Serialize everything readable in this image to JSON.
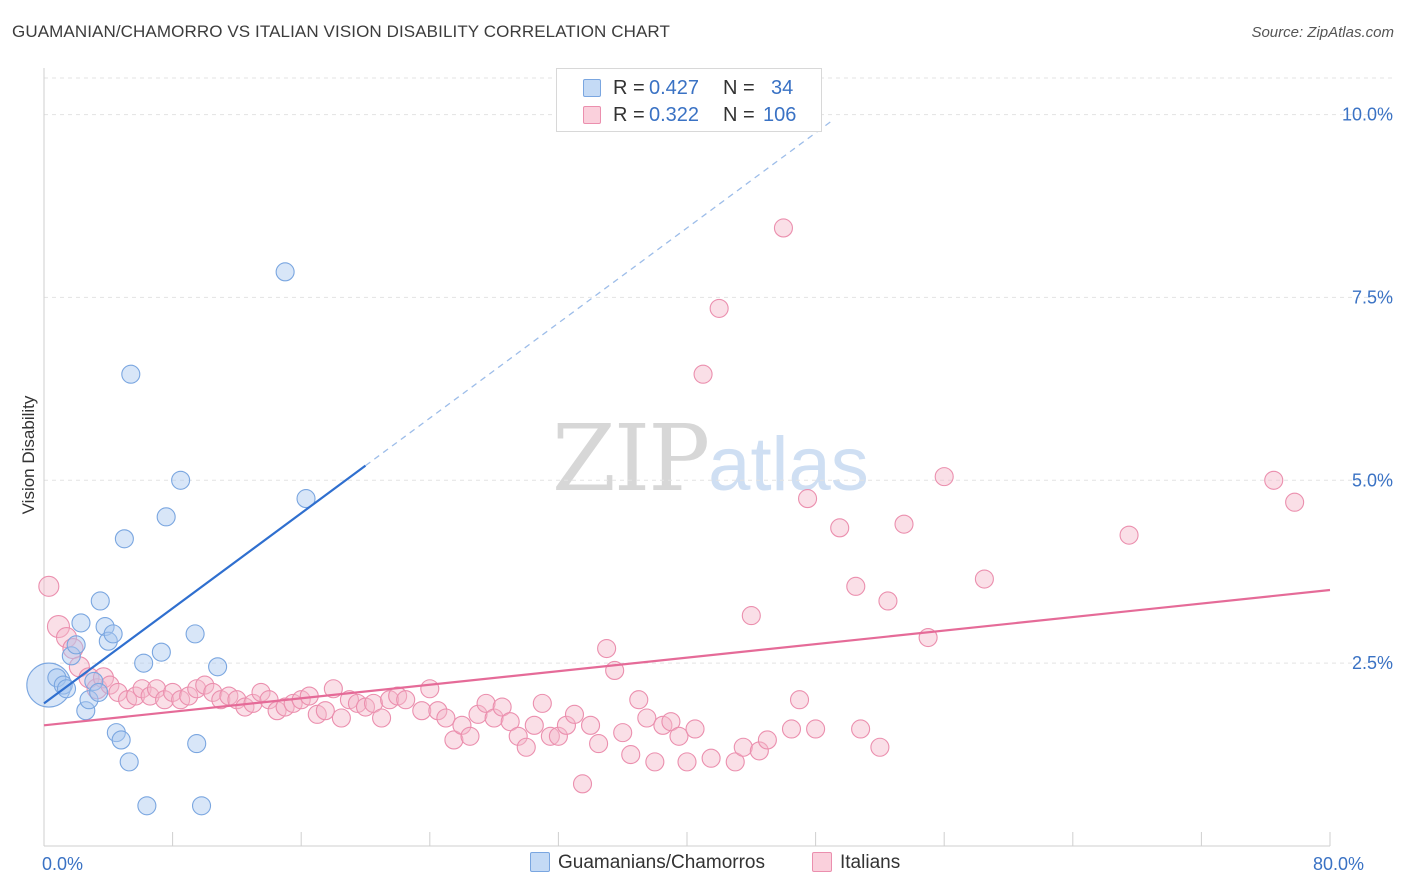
{
  "title": "GUAMANIAN/CHAMORRO VS ITALIAN VISION DISABILITY CORRELATION CHART",
  "source": "Source: ZipAtlas.com",
  "watermark": {
    "zip": "ZIP",
    "atlas": "atlas"
  },
  "legend": {
    "rows": [
      {
        "r_label": "R =",
        "r_value": "0.427",
        "n_label": "N =",
        "n_value": "34",
        "color": "#a9c8f0"
      },
      {
        "r_label": "R =",
        "r_value": "0.322",
        "n_label": "N =",
        "n_value": "106",
        "color": "#f5b8ca"
      }
    ]
  },
  "bottom_legend": [
    {
      "label": "Guamanians/Chamorros",
      "color": "#a9c8f0"
    },
    {
      "label": "Italians",
      "color": "#f5b8ca"
    }
  ],
  "chart_data": {
    "type": "scatter",
    "title": "GUAMANIAN/CHAMORRO VS ITALIAN VISION DISABILITY CORRELATION CHART",
    "xlabel": "",
    "ylabel": "Vision Disability",
    "xlim": [
      0,
      80
    ],
    "ylim": [
      0,
      10.5
    ],
    "x_tick_labels": [
      {
        "value": 0,
        "label": "0.0%"
      },
      {
        "value": 80,
        "label": "80.0%"
      }
    ],
    "y_tick_labels": [
      {
        "value": 2.5,
        "label": "2.5%"
      },
      {
        "value": 5.0,
        "label": "5.0%"
      },
      {
        "value": 7.5,
        "label": "7.5%"
      },
      {
        "value": 10.0,
        "label": "10.0%"
      }
    ],
    "grid": "horizontal dashed",
    "legend_position": "top-center",
    "colors": {
      "blue_fill": "#a9c8f0",
      "blue_line": "#2f6fcf",
      "pink_fill": "#f5b8ca",
      "pink_line": "#e56b98"
    },
    "series": [
      {
        "name": "Guamanians/Chamorros",
        "color": "#a9c8f0",
        "trend": {
          "x0": 0,
          "y0": 1.95,
          "x1": 20,
          "y1": 5.2,
          "dashed_to_x": 49
        },
        "points": [
          {
            "x": 0.3,
            "y": 2.2,
            "s": 22
          },
          {
            "x": 0.8,
            "y": 2.3,
            "s": 9
          },
          {
            "x": 1.2,
            "y": 2.2,
            "s": 9
          },
          {
            "x": 1.4,
            "y": 2.15,
            "s": 9
          },
          {
            "x": 1.7,
            "y": 2.6,
            "s": 9
          },
          {
            "x": 2.0,
            "y": 2.75,
            "s": 9
          },
          {
            "x": 2.3,
            "y": 3.05,
            "s": 9
          },
          {
            "x": 2.6,
            "y": 1.85,
            "s": 9
          },
          {
            "x": 2.8,
            "y": 2.0,
            "s": 9
          },
          {
            "x": 3.1,
            "y": 2.25,
            "s": 9
          },
          {
            "x": 3.4,
            "y": 2.1,
            "s": 9
          },
          {
            "x": 3.5,
            "y": 3.35,
            "s": 9
          },
          {
            "x": 3.8,
            "y": 3.0,
            "s": 9
          },
          {
            "x": 4.0,
            "y": 2.8,
            "s": 9
          },
          {
            "x": 4.3,
            "y": 2.9,
            "s": 9
          },
          {
            "x": 4.5,
            "y": 1.55,
            "s": 9
          },
          {
            "x": 4.8,
            "y": 1.45,
            "s": 9
          },
          {
            "x": 5.0,
            "y": 4.2,
            "s": 9
          },
          {
            "x": 5.3,
            "y": 1.15,
            "s": 9
          },
          {
            "x": 5.4,
            "y": 6.45,
            "s": 9
          },
          {
            "x": 6.2,
            "y": 2.5,
            "s": 9
          },
          {
            "x": 6.4,
            "y": 0.55,
            "s": 9
          },
          {
            "x": 7.3,
            "y": 2.65,
            "s": 9
          },
          {
            "x": 7.6,
            "y": 4.5,
            "s": 9
          },
          {
            "x": 8.5,
            "y": 5.0,
            "s": 9
          },
          {
            "x": 9.4,
            "y": 2.9,
            "s": 9
          },
          {
            "x": 9.5,
            "y": 1.4,
            "s": 9
          },
          {
            "x": 9.8,
            "y": 0.55,
            "s": 9
          },
          {
            "x": 10.8,
            "y": 2.45,
            "s": 9
          },
          {
            "x": 15.0,
            "y": 7.85,
            "s": 9
          },
          {
            "x": 16.3,
            "y": 4.75,
            "s": 9
          }
        ]
      },
      {
        "name": "Italians",
        "color": "#f5b8ca",
        "trend": {
          "x0": 0,
          "y0": 1.65,
          "x1": 80,
          "y1": 3.5
        },
        "points": [
          {
            "x": 0.3,
            "y": 3.55,
            "s": 10
          },
          {
            "x": 0.9,
            "y": 3.0,
            "s": 11
          },
          {
            "x": 1.4,
            "y": 2.85,
            "s": 10
          },
          {
            "x": 1.8,
            "y": 2.7,
            "s": 10
          },
          {
            "x": 2.2,
            "y": 2.45,
            "s": 10
          },
          {
            "x": 2.8,
            "y": 2.3,
            "s": 10
          },
          {
            "x": 3.3,
            "y": 2.15,
            "s": 10
          },
          {
            "x": 3.7,
            "y": 2.3,
            "s": 10
          },
          {
            "x": 4.1,
            "y": 2.2,
            "s": 9
          },
          {
            "x": 4.6,
            "y": 2.1,
            "s": 9
          },
          {
            "x": 5.2,
            "y": 2.0,
            "s": 9
          },
          {
            "x": 5.7,
            "y": 2.05,
            "s": 9
          },
          {
            "x": 6.1,
            "y": 2.15,
            "s": 9
          },
          {
            "x": 6.6,
            "y": 2.05,
            "s": 9
          },
          {
            "x": 7.0,
            "y": 2.15,
            "s": 9
          },
          {
            "x": 7.5,
            "y": 2.0,
            "s": 9
          },
          {
            "x": 8.0,
            "y": 2.1,
            "s": 9
          },
          {
            "x": 8.5,
            "y": 2.0,
            "s": 9
          },
          {
            "x": 9.0,
            "y": 2.05,
            "s": 9
          },
          {
            "x": 9.5,
            "y": 2.15,
            "s": 9
          },
          {
            "x": 10.0,
            "y": 2.2,
            "s": 9
          },
          {
            "x": 10.5,
            "y": 2.1,
            "s": 9
          },
          {
            "x": 11.0,
            "y": 2.0,
            "s": 9
          },
          {
            "x": 11.5,
            "y": 2.05,
            "s": 9
          },
          {
            "x": 12.0,
            "y": 2.0,
            "s": 9
          },
          {
            "x": 12.5,
            "y": 1.9,
            "s": 9
          },
          {
            "x": 13.0,
            "y": 1.95,
            "s": 9
          },
          {
            "x": 13.5,
            "y": 2.1,
            "s": 9
          },
          {
            "x": 14.0,
            "y": 2.0,
            "s": 9
          },
          {
            "x": 14.5,
            "y": 1.85,
            "s": 9
          },
          {
            "x": 15.0,
            "y": 1.9,
            "s": 9
          },
          {
            "x": 15.5,
            "y": 1.95,
            "s": 9
          },
          {
            "x": 16.0,
            "y": 2.0,
            "s": 9
          },
          {
            "x": 16.5,
            "y": 2.05,
            "s": 9
          },
          {
            "x": 17.0,
            "y": 1.8,
            "s": 9
          },
          {
            "x": 17.5,
            "y": 1.85,
            "s": 9
          },
          {
            "x": 18.0,
            "y": 2.15,
            "s": 9
          },
          {
            "x": 18.5,
            "y": 1.75,
            "s": 9
          },
          {
            "x": 19.0,
            "y": 2.0,
            "s": 9
          },
          {
            "x": 19.5,
            "y": 1.95,
            "s": 9
          },
          {
            "x": 20.0,
            "y": 1.9,
            "s": 9
          },
          {
            "x": 20.5,
            "y": 1.95,
            "s": 9
          },
          {
            "x": 21.0,
            "y": 1.75,
            "s": 9
          },
          {
            "x": 21.5,
            "y": 2.0,
            "s": 9
          },
          {
            "x": 22.0,
            "y": 2.05,
            "s": 9
          },
          {
            "x": 22.5,
            "y": 2.0,
            "s": 9
          },
          {
            "x": 23.5,
            "y": 1.85,
            "s": 9
          },
          {
            "x": 24.0,
            "y": 2.15,
            "s": 9
          },
          {
            "x": 24.5,
            "y": 1.85,
            "s": 9
          },
          {
            "x": 25.0,
            "y": 1.75,
            "s": 9
          },
          {
            "x": 25.5,
            "y": 1.45,
            "s": 9
          },
          {
            "x": 26.0,
            "y": 1.65,
            "s": 9
          },
          {
            "x": 26.5,
            "y": 1.5,
            "s": 9
          },
          {
            "x": 27.0,
            "y": 1.8,
            "s": 9
          },
          {
            "x": 27.5,
            "y": 1.95,
            "s": 9
          },
          {
            "x": 28.0,
            "y": 1.75,
            "s": 9
          },
          {
            "x": 28.5,
            "y": 1.9,
            "s": 9
          },
          {
            "x": 29.0,
            "y": 1.7,
            "s": 9
          },
          {
            "x": 29.5,
            "y": 1.5,
            "s": 9
          },
          {
            "x": 30.0,
            "y": 1.35,
            "s": 9
          },
          {
            "x": 30.5,
            "y": 1.65,
            "s": 9
          },
          {
            "x": 31.0,
            "y": 1.95,
            "s": 9
          },
          {
            "x": 31.5,
            "y": 1.5,
            "s": 9
          },
          {
            "x": 32.0,
            "y": 1.5,
            "s": 9
          },
          {
            "x": 32.5,
            "y": 1.65,
            "s": 9
          },
          {
            "x": 33.0,
            "y": 1.8,
            "s": 9
          },
          {
            "x": 33.5,
            "y": 0.85,
            "s": 9
          },
          {
            "x": 34.0,
            "y": 1.65,
            "s": 9
          },
          {
            "x": 34.5,
            "y": 1.4,
            "s": 9
          },
          {
            "x": 35.0,
            "y": 2.7,
            "s": 9
          },
          {
            "x": 35.5,
            "y": 2.4,
            "s": 9
          },
          {
            "x": 36.0,
            "y": 1.55,
            "s": 9
          },
          {
            "x": 36.5,
            "y": 1.25,
            "s": 9
          },
          {
            "x": 37.0,
            "y": 2.0,
            "s": 9
          },
          {
            "x": 37.5,
            "y": 1.75,
            "s": 9
          },
          {
            "x": 38.0,
            "y": 1.15,
            "s": 9
          },
          {
            "x": 38.5,
            "y": 1.65,
            "s": 9
          },
          {
            "x": 39.0,
            "y": 1.7,
            "s": 9
          },
          {
            "x": 39.5,
            "y": 1.5,
            "s": 9
          },
          {
            "x": 40.0,
            "y": 1.15,
            "s": 9
          },
          {
            "x": 40.5,
            "y": 1.6,
            "s": 9
          },
          {
            "x": 41.0,
            "y": 6.45,
            "s": 9
          },
          {
            "x": 41.5,
            "y": 1.2,
            "s": 9
          },
          {
            "x": 42.0,
            "y": 7.35,
            "s": 9
          },
          {
            "x": 43.0,
            "y": 1.15,
            "s": 9
          },
          {
            "x": 43.5,
            "y": 1.35,
            "s": 9
          },
          {
            "x": 44.0,
            "y": 3.15,
            "s": 9
          },
          {
            "x": 44.5,
            "y": 1.3,
            "s": 9
          },
          {
            "x": 45.0,
            "y": 1.45,
            "s": 9
          },
          {
            "x": 46.0,
            "y": 8.45,
            "s": 9
          },
          {
            "x": 46.5,
            "y": 1.6,
            "s": 9
          },
          {
            "x": 47.0,
            "y": 2.0,
            "s": 9
          },
          {
            "x": 47.5,
            "y": 4.75,
            "s": 9
          },
          {
            "x": 48.0,
            "y": 1.6,
            "s": 9
          },
          {
            "x": 49.5,
            "y": 4.35,
            "s": 9
          },
          {
            "x": 50.5,
            "y": 3.55,
            "s": 9
          },
          {
            "x": 50.8,
            "y": 1.6,
            "s": 9
          },
          {
            "x": 52.0,
            "y": 1.35,
            "s": 9
          },
          {
            "x": 52.5,
            "y": 3.35,
            "s": 9
          },
          {
            "x": 53.5,
            "y": 4.4,
            "s": 9
          },
          {
            "x": 55.0,
            "y": 2.85,
            "s": 9
          },
          {
            "x": 56.0,
            "y": 5.05,
            "s": 9
          },
          {
            "x": 58.5,
            "y": 3.65,
            "s": 9
          },
          {
            "x": 67.5,
            "y": 4.25,
            "s": 9
          },
          {
            "x": 76.5,
            "y": 5.0,
            "s": 9
          },
          {
            "x": 77.8,
            "y": 4.7,
            "s": 9
          }
        ]
      }
    ]
  }
}
